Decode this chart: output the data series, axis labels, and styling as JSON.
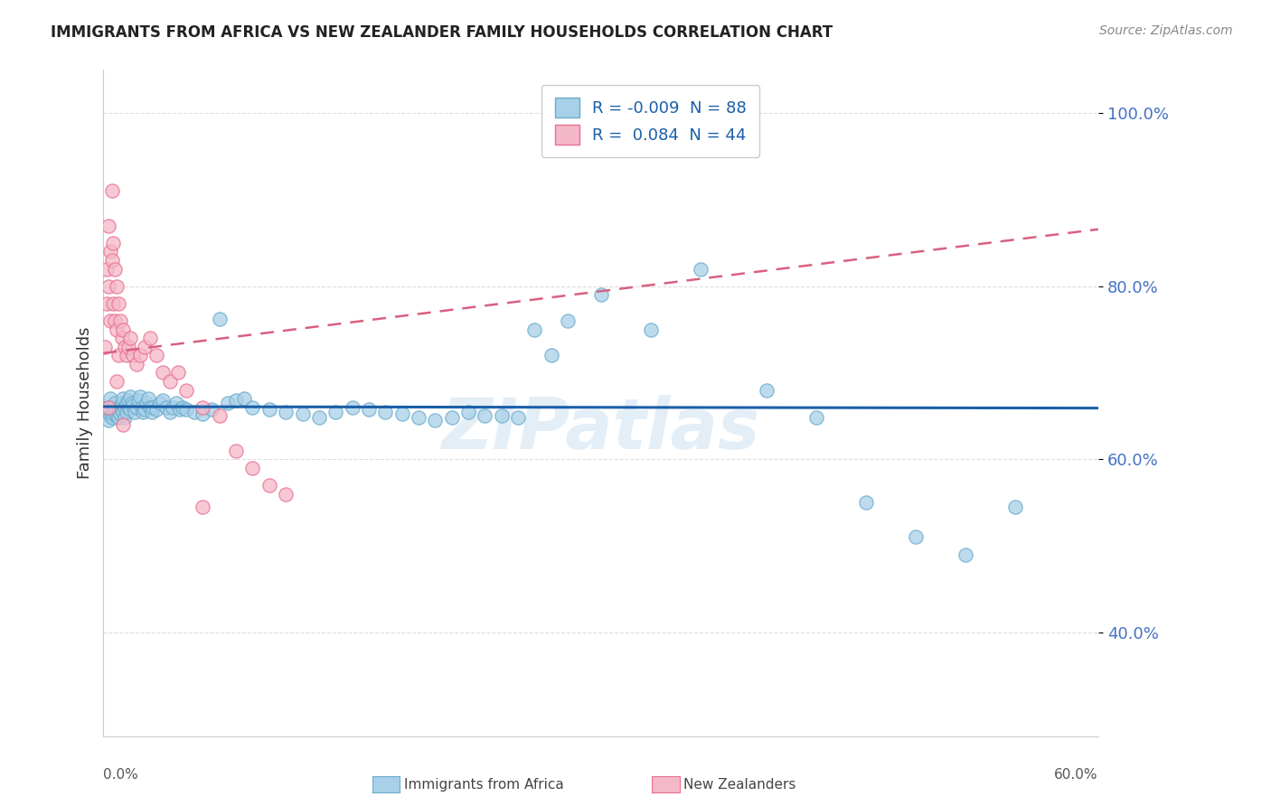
{
  "title": "IMMIGRANTS FROM AFRICA VS NEW ZEALANDER FAMILY HOUSEHOLDS CORRELATION CHART",
  "source": "Source: ZipAtlas.com",
  "ylabel": "Family Households",
  "legend_label1": "Immigrants from Africa",
  "legend_label2": "New Zealanders",
  "r1": "-0.009",
  "n1": "88",
  "r2": "0.084",
  "n2": "44",
  "xlim": [
    0.0,
    0.6
  ],
  "ylim": [
    0.28,
    1.05
  ],
  "yticks": [
    0.4,
    0.6,
    0.8,
    1.0
  ],
  "ytick_labels": [
    "40.0%",
    "60.0%",
    "80.0%",
    "100.0%"
  ],
  "blue_color": "#a8d0e8",
  "blue_edge_color": "#6aaccc",
  "pink_color": "#f5b8c8",
  "pink_edge_color": "#e87090",
  "blue_line_color": "#1a5fa8",
  "pink_line_color": "#d96080",
  "watermark": "ZIPatlas",
  "grid_color": "#dddddd",
  "blue_x": [
    0.002,
    0.003,
    0.004,
    0.004,
    0.005,
    0.005,
    0.006,
    0.006,
    0.007,
    0.007,
    0.008,
    0.008,
    0.009,
    0.009,
    0.01,
    0.01,
    0.011,
    0.011,
    0.012,
    0.012,
    0.013,
    0.013,
    0.014,
    0.014,
    0.015,
    0.015,
    0.016,
    0.016,
    0.017,
    0.018,
    0.019,
    0.02,
    0.021,
    0.022,
    0.023,
    0.024,
    0.025,
    0.026,
    0.027,
    0.028,
    0.029,
    0.03,
    0.032,
    0.034,
    0.036,
    0.038,
    0.04,
    0.042,
    0.044,
    0.046,
    0.048,
    0.05,
    0.055,
    0.06,
    0.065,
    0.07,
    0.075,
    0.08,
    0.085,
    0.09,
    0.1,
    0.11,
    0.12,
    0.13,
    0.14,
    0.15,
    0.16,
    0.17,
    0.18,
    0.19,
    0.2,
    0.21,
    0.22,
    0.23,
    0.25,
    0.27,
    0.3,
    0.33,
    0.36,
    0.4,
    0.43,
    0.46,
    0.49,
    0.52,
    0.55,
    0.24,
    0.26,
    0.28
  ],
  "blue_y": [
    0.66,
    0.645,
    0.65,
    0.67,
    0.655,
    0.648,
    0.652,
    0.66,
    0.655,
    0.665,
    0.658,
    0.65,
    0.655,
    0.648,
    0.66,
    0.652,
    0.658,
    0.665,
    0.67,
    0.655,
    0.66,
    0.648,
    0.655,
    0.665,
    0.66,
    0.668,
    0.672,
    0.658,
    0.665,
    0.662,
    0.655,
    0.66,
    0.668,
    0.672,
    0.66,
    0.655,
    0.658,
    0.665,
    0.67,
    0.66,
    0.655,
    0.66,
    0.658,
    0.665,
    0.668,
    0.66,
    0.655,
    0.66,
    0.665,
    0.658,
    0.66,
    0.658,
    0.655,
    0.652,
    0.658,
    0.762,
    0.665,
    0.668,
    0.67,
    0.66,
    0.658,
    0.655,
    0.652,
    0.648,
    0.655,
    0.66,
    0.658,
    0.655,
    0.652,
    0.648,
    0.645,
    0.648,
    0.655,
    0.65,
    0.648,
    0.72,
    0.79,
    0.75,
    0.82,
    0.68,
    0.648,
    0.55,
    0.51,
    0.49,
    0.545,
    0.65,
    0.75,
    0.76
  ],
  "pink_x": [
    0.001,
    0.002,
    0.002,
    0.003,
    0.003,
    0.004,
    0.004,
    0.005,
    0.005,
    0.006,
    0.006,
    0.007,
    0.007,
    0.008,
    0.008,
    0.009,
    0.009,
    0.01,
    0.011,
    0.012,
    0.013,
    0.014,
    0.015,
    0.016,
    0.018,
    0.02,
    0.022,
    0.025,
    0.028,
    0.032,
    0.036,
    0.04,
    0.045,
    0.05,
    0.06,
    0.07,
    0.08,
    0.09,
    0.1,
    0.11,
    0.003,
    0.008,
    0.012,
    0.06
  ],
  "pink_y": [
    0.73,
    0.78,
    0.82,
    0.8,
    0.87,
    0.84,
    0.76,
    0.83,
    0.91,
    0.78,
    0.85,
    0.76,
    0.82,
    0.75,
    0.8,
    0.72,
    0.78,
    0.76,
    0.74,
    0.75,
    0.73,
    0.72,
    0.73,
    0.74,
    0.72,
    0.71,
    0.72,
    0.73,
    0.74,
    0.72,
    0.7,
    0.69,
    0.7,
    0.68,
    0.66,
    0.65,
    0.61,
    0.59,
    0.57,
    0.56,
    0.66,
    0.69,
    0.64,
    0.545
  ]
}
